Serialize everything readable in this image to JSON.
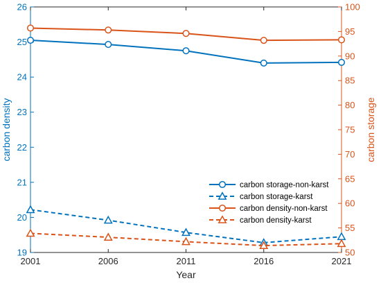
{
  "chart_data": {
    "type": "line",
    "xlabel": "Year",
    "ylabel_left": "carbon density",
    "ylabel_right": "carbon storage",
    "x": [
      2001,
      2006,
      2011,
      2016,
      2021
    ],
    "x_ticks": [
      "2001",
      "2006",
      "2011",
      "2016",
      "2021"
    ],
    "ylim_left": [
      19,
      26
    ],
    "ylim_right": [
      50,
      100
    ],
    "yticks_left": [
      "19",
      "20",
      "21",
      "22",
      "23",
      "24",
      "25",
      "26"
    ],
    "yticks_right": [
      "50",
      "55",
      "60",
      "65",
      "70",
      "75",
      "80",
      "85",
      "90",
      "95",
      "100"
    ],
    "colors": {
      "left_axis": "#0072BD",
      "right_axis": "#D95319"
    },
    "grid": false,
    "legend_position": "bottom-right",
    "series": [
      {
        "name": "carbon storage-non-karst",
        "axis": "left",
        "color": "#0072BD",
        "line": "solid",
        "marker": "circle",
        "values": [
          25.05,
          24.93,
          24.75,
          24.4,
          24.42
        ]
      },
      {
        "name": "carbon storage-karst",
        "axis": "left",
        "color": "#0072BD",
        "line": "dashed",
        "marker": "triangle",
        "values": [
          20.22,
          19.92,
          19.57,
          19.28,
          19.45
        ]
      },
      {
        "name": "carbon density-non-karst",
        "axis": "right",
        "color": "#D95319",
        "line": "solid",
        "marker": "circle",
        "values": [
          95.7,
          95.3,
          94.6,
          93.2,
          93.3
        ]
      },
      {
        "name": "carbon density-karst",
        "axis": "right",
        "color": "#D95319",
        "line": "dashed",
        "marker": "triangle",
        "values": [
          53.9,
          53.1,
          52.2,
          51.4,
          51.8
        ]
      }
    ]
  }
}
